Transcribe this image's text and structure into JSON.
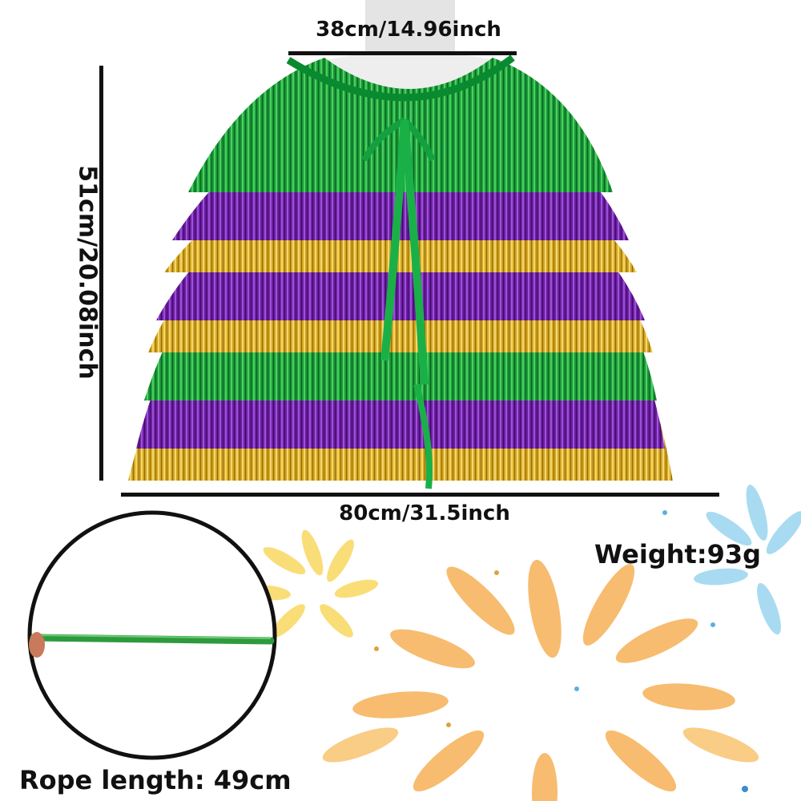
{
  "dimensions": {
    "neck_width": "38cm/14.96inch",
    "length": "51cm/20.08inch",
    "width": "80cm/31.5inch"
  },
  "weight": "Weight:93g",
  "rope": {
    "label": "Rope length: 49cm"
  },
  "colors": {
    "green": "#1a9a3a",
    "purple": "#6a1fa0",
    "gold": "#d4a520",
    "firework_orange": "#f7b560",
    "firework_yellow": "#f8d860",
    "firework_blue": "#9fd8f0",
    "rope_green": "#2e9a3e"
  },
  "icons": {
    "cape": "tinsel-cape-image",
    "mannequin": "mannequin-image",
    "fireworks": "fireworks-decoration",
    "rope": "green-ribbon-rope-image"
  }
}
